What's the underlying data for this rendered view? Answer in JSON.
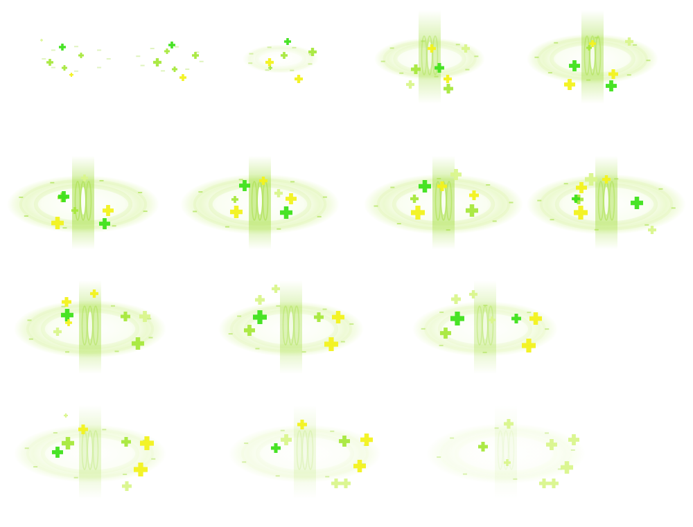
{
  "sprite_sheet": {
    "description_name": "healing-effect",
    "rows": 4,
    "frame_count": 15,
    "colors": {
      "ring": "#c9ef7a",
      "pillar": "#a8e04a",
      "cross_green": "#3ee21a",
      "cross_lime": "#a6e83c",
      "cross_yellow": "#f2f21c",
      "cross_pale": "#d9f58c"
    },
    "frames": [
      {
        "row": 0,
        "col": 0,
        "strength": 0.0
      },
      {
        "row": 0,
        "col": 1,
        "strength": 0.05
      },
      {
        "row": 0,
        "col": 2,
        "strength": 0.3
      },
      {
        "row": 0,
        "col": 3,
        "strength": 0.7
      },
      {
        "row": 0,
        "col": 4,
        "strength": 0.85
      },
      {
        "row": 1,
        "col": 0,
        "strength": 1.0
      },
      {
        "row": 1,
        "col": 1,
        "strength": 1.0
      },
      {
        "row": 1,
        "col": 2,
        "strength": 0.95
      },
      {
        "row": 1,
        "col": 3,
        "strength": 0.9
      },
      {
        "row": 2,
        "col": 0,
        "strength": 0.8
      },
      {
        "row": 2,
        "col": 1,
        "strength": 0.7
      },
      {
        "row": 2,
        "col": 2,
        "strength": 0.6
      },
      {
        "row": 3,
        "col": 0,
        "strength": 0.45
      },
      {
        "row": 3,
        "col": 1,
        "strength": 0.3
      },
      {
        "row": 3,
        "col": 2,
        "strength": 0.15
      }
    ]
  }
}
